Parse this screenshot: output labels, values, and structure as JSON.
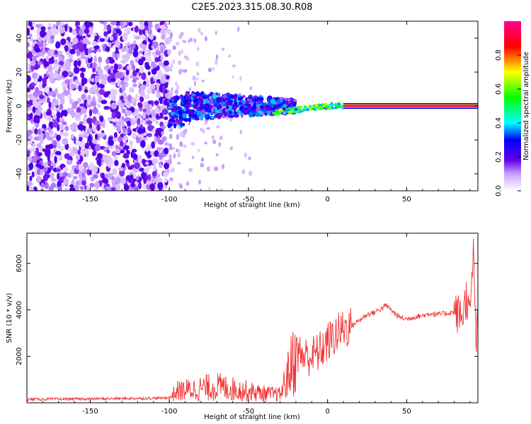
{
  "figure": {
    "title": "C2E5.2023.315.08.30.R08"
  },
  "chart_data": [
    {
      "type": "heatmap",
      "title": "C2E5.2023.315.08.30.R08",
      "xlabel": "Height of straight line (km)",
      "ylabel": "Frequency (Hz)",
      "xlim": [
        -190,
        95
      ],
      "ylim": [
        -50,
        50
      ],
      "xticks": [
        -150,
        -100,
        -50,
        0,
        50
      ],
      "yticks": [
        -40,
        -20,
        0,
        20,
        40
      ],
      "colorbar": {
        "label": "Normalized spectral amplitude",
        "range": [
          0,
          1
        ],
        "ticks": [
          0.0,
          0.2,
          0.4,
          0.6,
          0.8
        ]
      },
      "features": [
        {
          "segment": "noise",
          "x_range": [
            -190,
            -100
          ],
          "freq_range": [
            -50,
            50
          ],
          "amplitude": 0.15
        },
        {
          "segment": "broad-signal",
          "x_range": [
            -100,
            -20
          ],
          "freq_range": [
            -12,
            8
          ],
          "amplitude": 0.3
        },
        {
          "segment": "transition",
          "x_range": [
            -35,
            10
          ],
          "center_freq": [
            -4,
            0
          ],
          "amplitude": 0.55
        },
        {
          "segment": "narrow-carrier",
          "x_range": [
            10,
            95
          ],
          "center_freq": [
            0,
            0
          ],
          "amplitude": 0.95
        }
      ]
    },
    {
      "type": "line",
      "title": "",
      "xlabel": "Height of straight line (km)",
      "ylabel": "SNR (10 * v/v)",
      "xlim": [
        -190,
        95
      ],
      "ylim": [
        0,
        7300
      ],
      "xticks": [
        -150,
        -100,
        -50,
        0,
        50
      ],
      "yticks": [
        2000,
        4000,
        6000
      ],
      "series": [
        {
          "name": "SNR",
          "color": "#f03232",
          "x": [
            -190,
            -150,
            -105,
            -100,
            -95,
            -70,
            -50,
            -40,
            -30,
            -25,
            -20,
            -15,
            -10,
            -5,
            0,
            10,
            15,
            25,
            30,
            35,
            37,
            40,
            45,
            50,
            55,
            60,
            65,
            70,
            75,
            80,
            85,
            88,
            90,
            92,
            94,
            95
          ],
          "y": [
            150,
            170,
            200,
            230,
            500,
            700,
            500,
            400,
            350,
            1200,
            2200,
            2000,
            2000,
            2200,
            2600,
            3200,
            3300,
            3800,
            3900,
            4100,
            4200,
            4000,
            3700,
            3600,
            3700,
            3750,
            3850,
            3800,
            3850,
            3900,
            3750,
            4600,
            3500,
            6600,
            2500,
            3500
          ]
        }
      ]
    }
  ]
}
